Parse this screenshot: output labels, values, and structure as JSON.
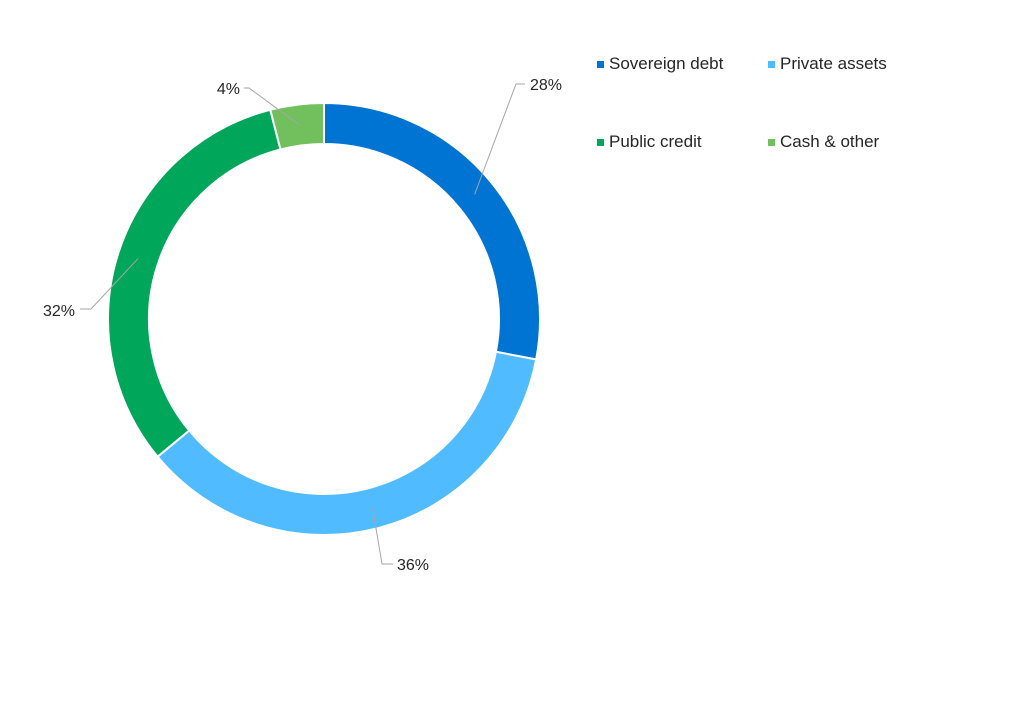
{
  "chart_data": {
    "type": "pie",
    "style": "donut",
    "legend_position": "top-right",
    "slices": [
      {
        "name": "Sovereign debt",
        "value": 28,
        "label": "28%",
        "color": "#0074d3"
      },
      {
        "name": "Private assets",
        "value": 36,
        "label": "36%",
        "color": "#51bbff"
      },
      {
        "name": "Public credit",
        "value": 32,
        "label": "32%",
        "color": "#00a65a"
      },
      {
        "name": "Cash & other",
        "value": 4,
        "label": "4%",
        "color": "#72bf5d"
      }
    ]
  }
}
